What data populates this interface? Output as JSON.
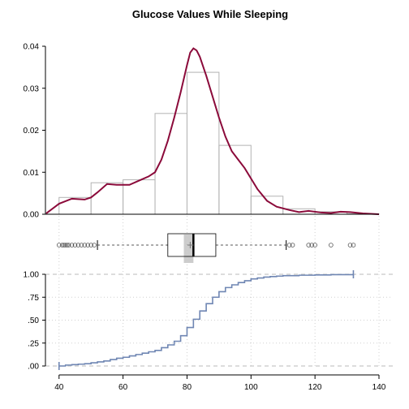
{
  "chart_data": [
    {
      "type": "bar",
      "panel": "histogram-with-density",
      "title": "Glucose Values While Sleeping",
      "bins": [
        {
          "x0": 40,
          "x1": 50,
          "density": 0.004
        },
        {
          "x0": 50,
          "x1": 60,
          "density": 0.0075
        },
        {
          "x0": 60,
          "x1": 70,
          "density": 0.0082
        },
        {
          "x0": 70,
          "x1": 80,
          "density": 0.024
        },
        {
          "x0": 80,
          "x1": 90,
          "density": 0.0338
        },
        {
          "x0": 90,
          "x1": 100,
          "density": 0.0164
        },
        {
          "x0": 100,
          "x1": 110,
          "density": 0.0043
        },
        {
          "x0": 110,
          "x1": 120,
          "density": 0.0013
        },
        {
          "x0": 120,
          "x1": 130,
          "density": 0.0006
        },
        {
          "x0": 130,
          "x1": 140,
          "density": 0.0001
        }
      ],
      "density_curve": {
        "x": [
          36,
          40,
          44,
          48,
          50,
          52,
          55,
          58,
          62,
          65,
          68,
          70,
          72,
          74,
          76,
          78,
          80,
          81,
          82,
          83,
          84,
          86,
          88,
          90,
          92,
          94,
          96,
          98,
          100,
          102,
          105,
          108,
          112,
          115,
          118,
          122,
          125,
          128,
          131,
          135,
          140
        ],
        "y": [
          0.0002,
          0.0025,
          0.0037,
          0.0035,
          0.004,
          0.0052,
          0.0072,
          0.007,
          0.007,
          0.008,
          0.009,
          0.01,
          0.013,
          0.0175,
          0.023,
          0.029,
          0.0355,
          0.0385,
          0.0395,
          0.039,
          0.0375,
          0.033,
          0.028,
          0.023,
          0.0185,
          0.015,
          0.013,
          0.011,
          0.0085,
          0.006,
          0.0032,
          0.0018,
          0.001,
          0.0005,
          0.0008,
          0.0004,
          0.0003,
          0.0006,
          0.0005,
          0.0002,
          0.0
        ]
      },
      "xlim": [
        36,
        140
      ],
      "ylim": [
        0,
        0.04
      ],
      "yticks": [
        0.0,
        0.01,
        0.02,
        0.03,
        0.04
      ],
      "ytick_labels": [
        "0.00",
        "0.01",
        "0.02",
        "0.03",
        "0.04"
      ]
    },
    {
      "type": "box",
      "panel": "boxplot",
      "q1": 74,
      "median": 82,
      "q3": 89,
      "mean": 81,
      "notch": [
        79,
        82
      ],
      "whisker_low": 52,
      "whisker_high": 111,
      "outliers": [
        40,
        41,
        41.5,
        42,
        42.5,
        43,
        44,
        45,
        46,
        47,
        48,
        49,
        50,
        51,
        112,
        113,
        118,
        119,
        120,
        125,
        131,
        132
      ]
    },
    {
      "type": "line",
      "panel": "ecdf",
      "x": [
        40,
        42,
        44,
        46,
        48,
        50,
        52,
        54,
        56,
        58,
        60,
        62,
        64,
        66,
        68,
        70,
        72,
        74,
        76,
        78,
        80,
        82,
        84,
        86,
        88,
        90,
        92,
        94,
        96,
        98,
        100,
        102,
        104,
        106,
        108,
        110,
        115,
        120,
        125,
        132
      ],
      "y": [
        0.0,
        0.01,
        0.015,
        0.02,
        0.025,
        0.035,
        0.045,
        0.055,
        0.07,
        0.085,
        0.095,
        0.11,
        0.125,
        0.14,
        0.155,
        0.17,
        0.2,
        0.23,
        0.27,
        0.33,
        0.42,
        0.51,
        0.6,
        0.68,
        0.75,
        0.81,
        0.855,
        0.885,
        0.91,
        0.93,
        0.95,
        0.96,
        0.97,
        0.975,
        0.98,
        0.985,
        0.99,
        0.993,
        0.996,
        1.0
      ],
      "xlim": [
        36,
        140
      ],
      "ylim": [
        0,
        1
      ],
      "xticks": [
        40,
        60,
        80,
        100,
        120,
        140
      ],
      "xtick_labels": [
        "40",
        "60",
        "80",
        "100",
        "120",
        "140"
      ],
      "yticks": [
        0,
        0.25,
        0.5,
        0.75,
        1.0
      ],
      "ytick_labels": [
        ".00",
        ".25",
        ".50",
        ".75",
        "1.00"
      ],
      "reference_lines": [
        0,
        1
      ],
      "grid": true
    }
  ]
}
